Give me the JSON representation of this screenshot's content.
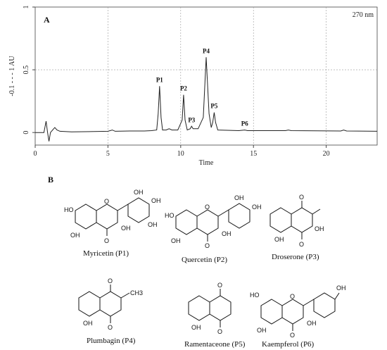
{
  "chart_data": {
    "type": "line",
    "panel_label": "A",
    "annotation": "270 nm",
    "xlabel": "Time",
    "ylabel": "-0.1 - - - 1 AU",
    "xlim": [
      0,
      23.5
    ],
    "ylim": [
      -0.1,
      1.0
    ],
    "x_ticks": [
      0,
      5,
      10,
      15,
      20
    ],
    "y_ticks": [
      0,
      0.5,
      1
    ],
    "x_tick_labels": [
      "0",
      "5",
      "10",
      "15",
      "20"
    ],
    "y_tick_labels": [
      "0",
      "0.5",
      "1"
    ],
    "grid": true,
    "series": [
      {
        "points": [
          [
            0,
            0.0
          ],
          [
            0.6,
            0.0
          ],
          [
            0.75,
            0.09
          ],
          [
            0.85,
            0.0
          ],
          [
            0.95,
            -0.07
          ],
          [
            1.05,
            0.0
          ],
          [
            1.2,
            0.02
          ],
          [
            1.35,
            0.04
          ],
          [
            1.5,
            0.02
          ],
          [
            1.7,
            0.01
          ],
          [
            2.5,
            0.005
          ],
          [
            5.0,
            0.01
          ],
          [
            5.3,
            0.02
          ],
          [
            5.5,
            0.01
          ],
          [
            6.5,
            0.012
          ],
          [
            7.5,
            0.012
          ],
          [
            8.0,
            0.015
          ],
          [
            8.35,
            0.02
          ],
          [
            8.45,
            0.15
          ],
          [
            8.55,
            0.37
          ],
          [
            8.65,
            0.12
          ],
          [
            8.75,
            0.02
          ],
          [
            9.0,
            0.02
          ],
          [
            9.2,
            0.03
          ],
          [
            9.4,
            0.02
          ],
          [
            9.8,
            0.02
          ],
          [
            10.1,
            0.1
          ],
          [
            10.2,
            0.3
          ],
          [
            10.3,
            0.1
          ],
          [
            10.45,
            0.02
          ],
          [
            10.65,
            0.03
          ],
          [
            10.75,
            0.05
          ],
          [
            10.85,
            0.03
          ],
          [
            11.2,
            0.03
          ],
          [
            11.55,
            0.12
          ],
          [
            11.75,
            0.6
          ],
          [
            11.95,
            0.15
          ],
          [
            12.1,
            0.04
          ],
          [
            12.2,
            0.08
          ],
          [
            12.3,
            0.16
          ],
          [
            12.4,
            0.08
          ],
          [
            12.55,
            0.02
          ],
          [
            14.0,
            0.015
          ],
          [
            14.4,
            0.02
          ],
          [
            14.6,
            0.015
          ],
          [
            17.2,
            0.015
          ],
          [
            17.4,
            0.02
          ],
          [
            17.6,
            0.015
          ],
          [
            21.0,
            0.012
          ],
          [
            21.2,
            0.02
          ],
          [
            21.4,
            0.012
          ],
          [
            23.5,
            0.01
          ]
        ]
      }
    ],
    "peaks": [
      {
        "label": "P1",
        "x": 8.55,
        "y": 0.37
      },
      {
        "label": "P2",
        "x": 10.2,
        "y": 0.3
      },
      {
        "label": "P3",
        "x": 10.75,
        "y": 0.05
      },
      {
        "label": "P4",
        "x": 11.75,
        "y": 0.6
      },
      {
        "label": "P5",
        "x": 12.3,
        "y": 0.16
      },
      {
        "label": "P6",
        "x": 14.4,
        "y": 0.02
      }
    ]
  },
  "panel_b": {
    "label": "B",
    "compounds": [
      {
        "name": "Myricetin (P1)"
      },
      {
        "name": "Quercetin (P2)"
      },
      {
        "name": "Droserone (P3)"
      },
      {
        "name": "Plumbagin (P4)"
      },
      {
        "name": "Ramentaceone (P5)"
      },
      {
        "name": "Kaempferol (P6)"
      }
    ],
    "atoms": {
      "oh": "OH",
      "ho": "HO",
      "o": "O",
      "ch3": "CH3"
    }
  }
}
